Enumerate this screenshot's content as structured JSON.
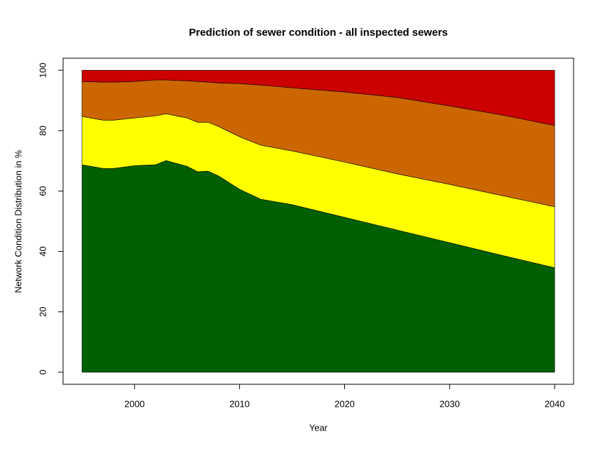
{
  "chart_data": {
    "type": "stacked-area",
    "title": "Prediction of sewer condition - all inspected sewers",
    "x_label": "Year",
    "y_label": "Network Condition Distribution in %",
    "x": [
      1995,
      1997,
      1998,
      2000,
      2002,
      2003,
      2005,
      2006,
      2007,
      2008,
      2010,
      2012,
      2015,
      2020,
      2025,
      2030,
      2035,
      2040
    ],
    "series": [
      {
        "color": "#005f00",
        "values": [
          68.7,
          67.5,
          67.5,
          68.4,
          68.7,
          70.1,
          68.2,
          66.4,
          66.6,
          65.0,
          60.6,
          57.3,
          55.5,
          51.3,
          47.1,
          42.9,
          38.7,
          34.6
        ]
      },
      {
        "color": "#ffff00",
        "values": [
          16.0,
          16.0,
          16.0,
          15.8,
          16.2,
          15.5,
          16.0,
          16.4,
          16.2,
          16.4,
          17.4,
          17.9,
          17.8,
          18.3,
          18.6,
          19.3,
          19.8,
          20.2
        ]
      },
      {
        "color": "#cc6600",
        "values": [
          11.6,
          12.6,
          12.6,
          12.1,
          11.9,
          11.2,
          12.3,
          13.5,
          13.3,
          14.4,
          17.6,
          19.9,
          20.9,
          23.2,
          25.3,
          26.0,
          26.7,
          26.9
        ]
      },
      {
        "color": "#cc0000",
        "values": [
          3.7,
          3.9,
          3.9,
          3.7,
          3.2,
          3.2,
          3.5,
          3.7,
          3.9,
          4.2,
          4.4,
          4.9,
          5.8,
          7.2,
          9.0,
          11.8,
          14.8,
          18.3
        ]
      }
    ],
    "xlim": [
      1993.2,
      2041.8
    ],
    "xticks": [
      2000,
      2010,
      2020,
      2030,
      2040
    ],
    "ylim": [
      -4,
      104
    ],
    "yticks": [
      0,
      20,
      40,
      60,
      80,
      100
    ]
  }
}
